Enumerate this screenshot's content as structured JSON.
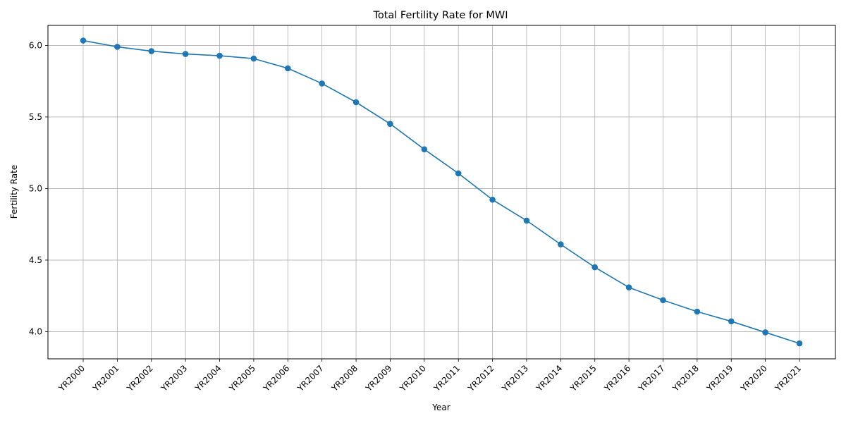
{
  "chart_data": {
    "type": "line",
    "title": "Total Fertility Rate for MWI",
    "xlabel": "Year",
    "ylabel": "Fertility Rate",
    "categories": [
      "YR2000",
      "YR2001",
      "YR2002",
      "YR2003",
      "YR2004",
      "YR2005",
      "YR2006",
      "YR2007",
      "YR2008",
      "YR2009",
      "YR2010",
      "YR2011",
      "YR2012",
      "YR2013",
      "YR2014",
      "YR2015",
      "YR2016",
      "YR2017",
      "YR2018",
      "YR2019",
      "YR2020",
      "YR2021"
    ],
    "series": [
      {
        "values": [
          6.034,
          5.99,
          5.96,
          5.94,
          5.928,
          5.908,
          5.84,
          5.734,
          5.603,
          5.452,
          5.274,
          5.106,
          4.922,
          4.776,
          4.61,
          4.45,
          4.309,
          4.22,
          4.14,
          4.072,
          3.995,
          3.918
        ],
        "color": "#1f77b4"
      }
    ],
    "yticks": [
      "4.0",
      "4.5",
      "5.0",
      "5.5",
      "6.0"
    ],
    "ylim": [
      3.81,
      6.14
    ],
    "grid": true,
    "marker": "circle"
  }
}
